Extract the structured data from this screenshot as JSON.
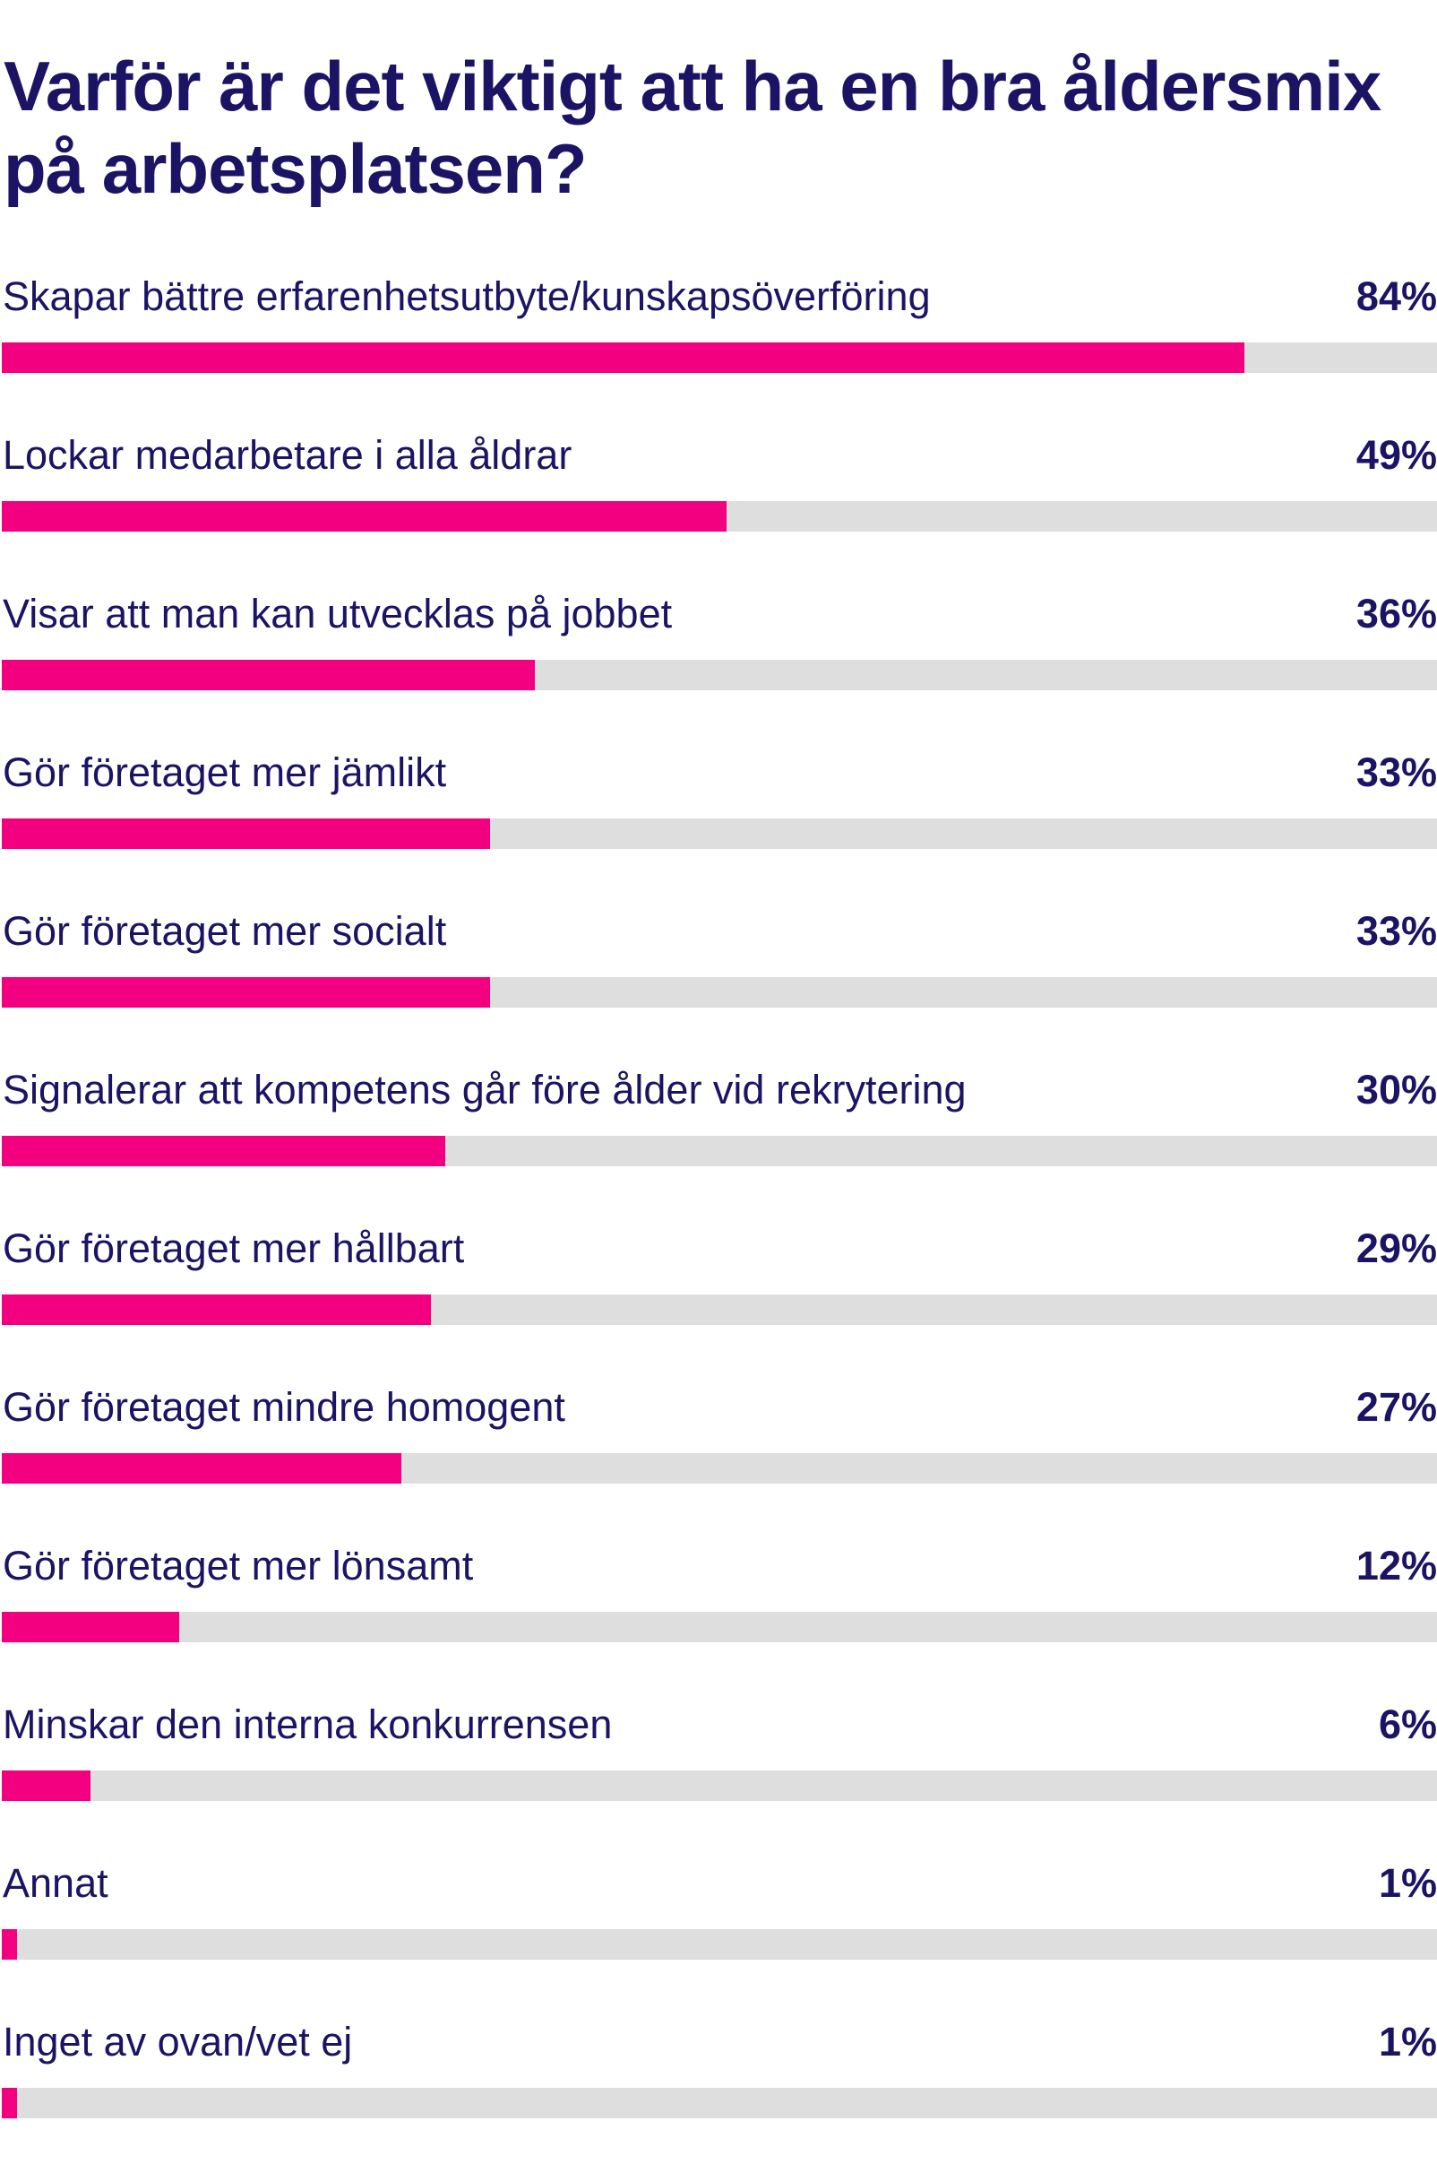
{
  "colors": {
    "bar": "#f2007f",
    "track": "#dedede",
    "text": "#1b1464"
  },
  "chart_data": {
    "type": "bar",
    "orientation": "horizontal",
    "title": "Varför är det viktigt att ha en bra åldersmix på arbetsplatsen?",
    "unit": "%",
    "categories": [
      "Skapar bättre erfarenhetsutbyte/kunskapsöverföring",
      "Lockar medarbetare i alla åldrar",
      "Visar att man kan utvecklas på jobbet",
      "Gör företaget mer jämlikt",
      "Gör företaget mer socialt",
      "Signalerar att kompetens går före ålder vid rekrytering",
      "Gör företaget mer hållbart",
      "Gör företaget mindre homogent",
      "Gör företaget mer lönsamt",
      "Minskar den interna konkurrensen",
      "Annat",
      "Inget av ovan/vet ej"
    ],
    "values": [
      84,
      49,
      36,
      33,
      33,
      30,
      29,
      27,
      12,
      6,
      1,
      1
    ],
    "value_labels": [
      "84%",
      "49%",
      "36%",
      "33%",
      "33%",
      "30%",
      "29%",
      "27%",
      "12%",
      "6%",
      "1%",
      "1%"
    ],
    "xlim": [
      0,
      97
    ]
  }
}
